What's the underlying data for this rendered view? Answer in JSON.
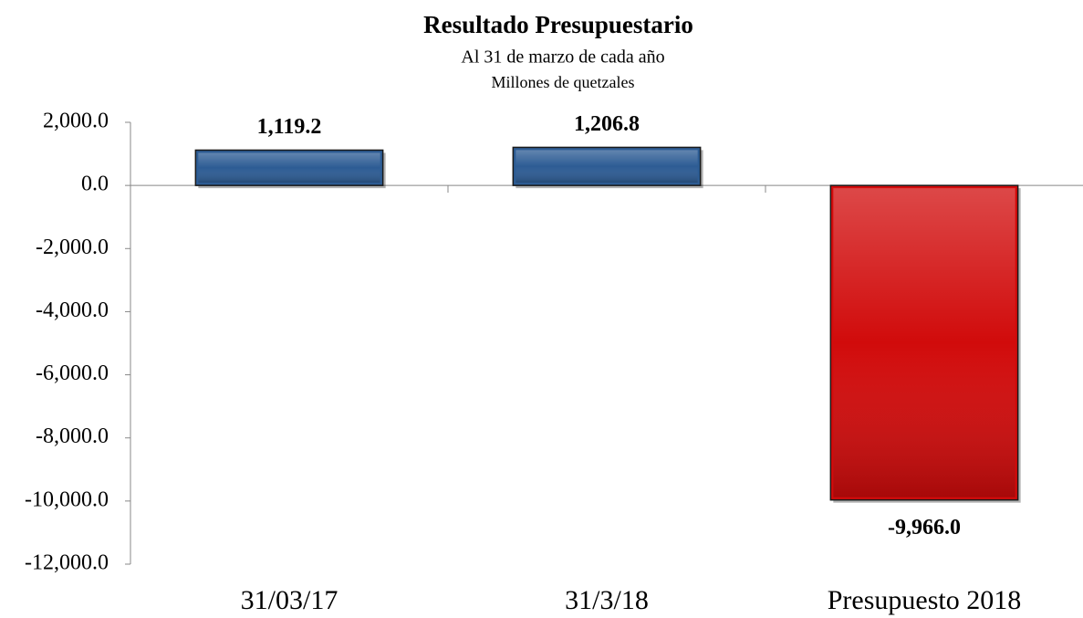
{
  "chart_data": {
    "type": "bar",
    "title": "Resultado Presupuestario",
    "subtitle": "Al 31 de marzo de cada año",
    "subtitle_2": "Millones de quetzales",
    "categories": [
      "31/03/17",
      "31/3/18",
      "Presupuesto 2018"
    ],
    "values": [
      1119.2,
      1206.8,
      -9966.0
    ],
    "value_labels": [
      "1,119.2",
      "1,206.8",
      "-9,966.0"
    ],
    "colors": [
      "#2d5c94",
      "#2d5c94",
      "#d10b0b"
    ],
    "ylim": [
      -12000,
      2000
    ],
    "yticks": [
      {
        "value": -12000,
        "label": "-12,000.0"
      },
      {
        "value": -10000,
        "label": "-10,000.0"
      },
      {
        "value": -8000,
        "label": "-8,000.0"
      },
      {
        "value": -6000,
        "label": "-6,000.0"
      },
      {
        "value": -4000,
        "label": "-4,000.0"
      },
      {
        "value": -2000,
        "label": "-2,000.0"
      },
      {
        "value": 0,
        "label": "0.0"
      },
      {
        "value": 2000,
        "label": "2,000.0"
      }
    ],
    "grid": false
  }
}
